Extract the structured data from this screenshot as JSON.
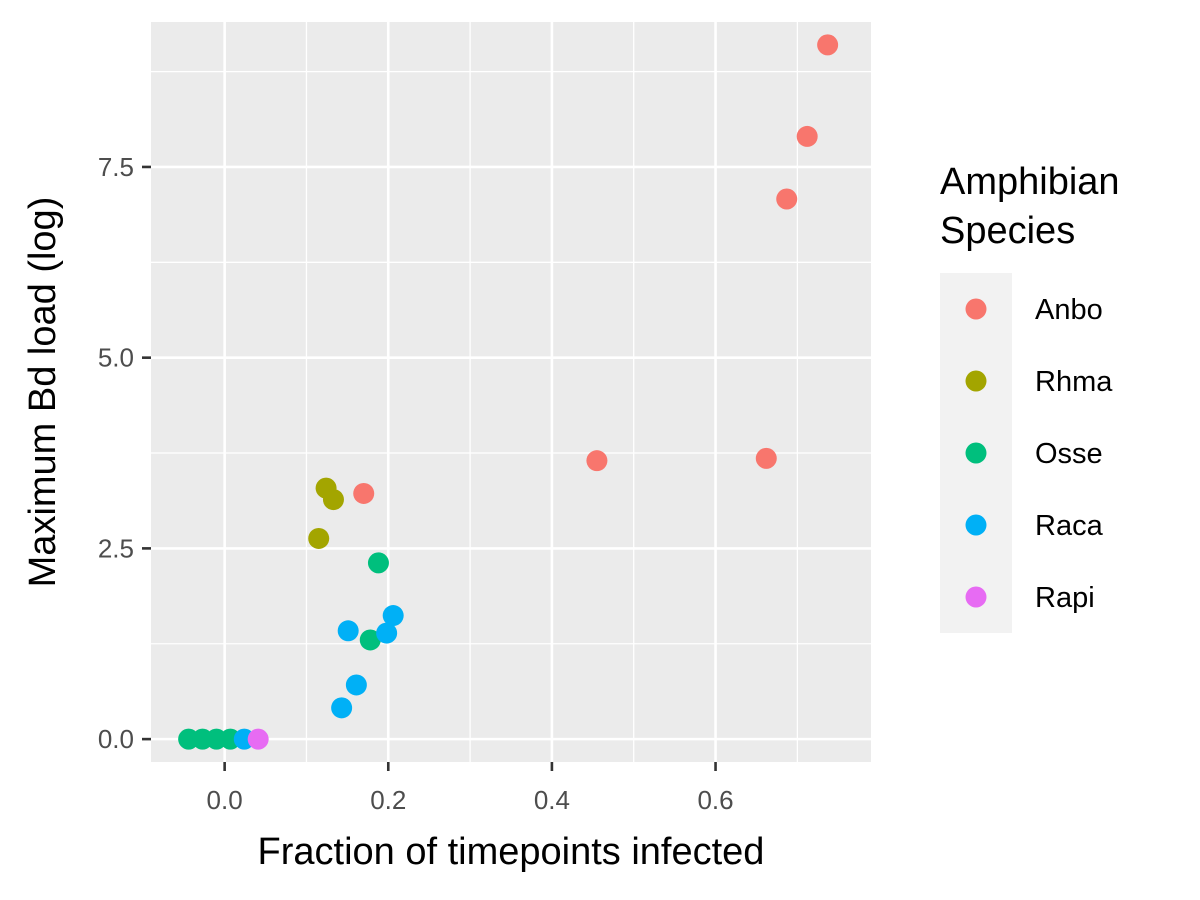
{
  "chart_data": {
    "type": "scatter",
    "title": "",
    "xlabel": "Fraction of timepoints infected",
    "ylabel": "Maximum Bd load (log)",
    "xlim": [
      -0.09,
      0.79
    ],
    "ylim": [
      -0.3,
      9.4
    ],
    "x_ticks": [
      0.0,
      0.2,
      0.4,
      0.6
    ],
    "x_tick_labels": [
      "0.0",
      "0.2",
      "0.4",
      "0.6"
    ],
    "y_ticks": [
      0.0,
      2.5,
      5.0,
      7.5
    ],
    "y_tick_labels": [
      "0.0",
      "2.5",
      "5.0",
      "7.5"
    ],
    "grid": true,
    "legend": {
      "title_lines": [
        "Amphibian",
        "Species"
      ],
      "position": "right"
    },
    "series": [
      {
        "name": "Anbo",
        "color": "#F8766D",
        "points": [
          {
            "x": 0.737,
            "y": 9.1
          },
          {
            "x": 0.712,
            "y": 7.9
          },
          {
            "x": 0.687,
            "y": 7.08
          },
          {
            "x": 0.455,
            "y": 3.65
          },
          {
            "x": 0.662,
            "y": 3.68
          },
          {
            "x": 0.17,
            "y": 3.22
          }
        ]
      },
      {
        "name": "Rhma",
        "color": "#A3A500",
        "points": [
          {
            "x": 0.124,
            "y": 3.29
          },
          {
            "x": 0.133,
            "y": 3.14
          },
          {
            "x": 0.115,
            "y": 2.63
          }
        ]
      },
      {
        "name": "Osse",
        "color": "#00BF7D",
        "points": [
          {
            "x": 0.188,
            "y": 2.31
          },
          {
            "x": 0.178,
            "y": 1.3
          },
          {
            "x": -0.044,
            "y": 0.0
          },
          {
            "x": -0.027,
            "y": 0.0
          },
          {
            "x": -0.01,
            "y": 0.0
          },
          {
            "x": 0.007,
            "y": 0.0
          }
        ]
      },
      {
        "name": "Raca",
        "color": "#00B0F6",
        "points": [
          {
            "x": 0.151,
            "y": 1.42
          },
          {
            "x": 0.206,
            "y": 1.62
          },
          {
            "x": 0.198,
            "y": 1.39
          },
          {
            "x": 0.161,
            "y": 0.71
          },
          {
            "x": 0.143,
            "y": 0.41
          },
          {
            "x": 0.024,
            "y": 0.0
          }
        ]
      },
      {
        "name": "Rapi",
        "color": "#E76BF3",
        "points": [
          {
            "x": 0.041,
            "y": 0.0
          }
        ]
      }
    ]
  }
}
